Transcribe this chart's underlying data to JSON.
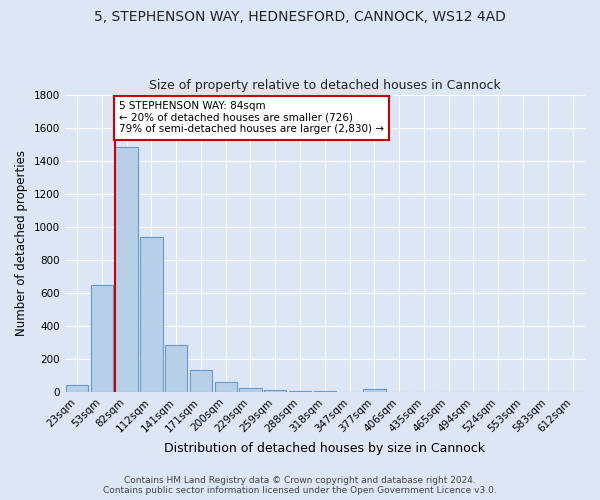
{
  "title1": "5, STEPHENSON WAY, HEDNESFORD, CANNOCK, WS12 4AD",
  "title2": "Size of property relative to detached houses in Cannock",
  "xlabel": "Distribution of detached houses by size in Cannock",
  "ylabel": "Number of detached properties",
  "bar_labels": [
    "23sqm",
    "53sqm",
    "82sqm",
    "112sqm",
    "141sqm",
    "171sqm",
    "200sqm",
    "229sqm",
    "259sqm",
    "288sqm",
    "318sqm",
    "347sqm",
    "377sqm",
    "406sqm",
    "435sqm",
    "465sqm",
    "494sqm",
    "524sqm",
    "553sqm",
    "583sqm",
    "612sqm"
  ],
  "bar_values": [
    40,
    650,
    1480,
    940,
    285,
    130,
    62,
    22,
    10,
    5,
    3,
    2,
    18,
    0,
    0,
    0,
    0,
    0,
    0,
    0,
    0
  ],
  "bar_color": "#b8cfe8",
  "bar_edge_color": "#6699cc",
  "background_color": "#dce6f5",
  "plot_bg_color": "#dce6f5",
  "grid_color": "#ffffff",
  "vline_color": "#cc0000",
  "annotation_text": "5 STEPHENSON WAY: 84sqm\n← 20% of detached houses are smaller (726)\n79% of semi-detached houses are larger (2,830) →",
  "annotation_box_color": "#ffffff",
  "annotation_box_edge": "#cc0000",
  "ylim": [
    0,
    1800
  ],
  "yticks": [
    0,
    200,
    400,
    600,
    800,
    1000,
    1200,
    1400,
    1600,
    1800
  ],
  "footer": "Contains HM Land Registry data © Crown copyright and database right 2024.\nContains public sector information licensed under the Open Government Licence v3.0.",
  "title1_fontsize": 10,
  "title2_fontsize": 9,
  "xlabel_fontsize": 9,
  "ylabel_fontsize": 8.5,
  "tick_fontsize": 7.5,
  "footer_fontsize": 6.5
}
